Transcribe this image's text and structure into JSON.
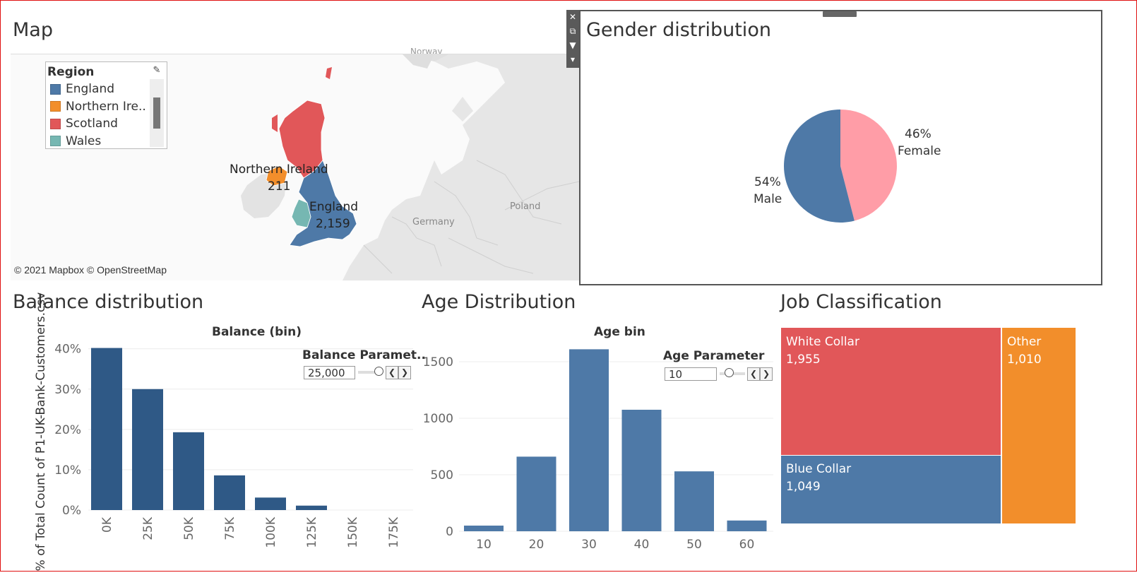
{
  "titles": {
    "map": "Map",
    "gender": "Gender distribution",
    "balance": "Balance distribution",
    "age": "Age Distribution",
    "job": "Job Classification"
  },
  "map": {
    "legend_title": "Region",
    "legend": [
      {
        "label": "England",
        "color": "#4e79a7"
      },
      {
        "label": "Northern Ire..",
        "color": "#f28e2b"
      },
      {
        "label": "Scotland",
        "color": "#e15759"
      },
      {
        "label": "Wales",
        "color": "#76b7b2"
      }
    ],
    "labels": {
      "ni_name": "Northern Ireland",
      "ni_value": "211",
      "eng_name": "England",
      "eng_value": "2,159",
      "germany": "Germany",
      "poland": "Poland",
      "norway": "Norway"
    },
    "attribution": "© 2021 Mapbox © OpenStreetMap"
  },
  "toolbar": {
    "close": "✕",
    "open": "⧉",
    "filter": "▼",
    "more": "▾"
  },
  "chart_data": [
    {
      "type": "pie",
      "title": "Gender distribution",
      "categories": [
        "Male",
        "Female"
      ],
      "values": [
        54,
        46
      ],
      "labels": [
        "54%",
        "46%"
      ],
      "colors": [
        "#4e79a7",
        "#ff9da7"
      ]
    },
    {
      "type": "bar",
      "title": "Balance distribution",
      "xlabel": "Balance (bin)",
      "ylabel": "% of Total Count of P1-UK-Bank-Customers.csv",
      "categories": [
        "0K",
        "25K",
        "50K",
        "75K",
        "100K",
        "125K",
        "150K",
        "175K"
      ],
      "values": [
        40.2,
        30.0,
        19.3,
        8.6,
        3.1,
        1.1,
        0,
        0
      ],
      "yticks": [
        "0%",
        "10%",
        "20%",
        "30%",
        "40%"
      ],
      "ylim": [
        0,
        41
      ],
      "color": "#2f5986",
      "parameter": {
        "title": "Balance Paramet..",
        "value": "25,000"
      }
    },
    {
      "type": "bar",
      "title": "Age Distribution",
      "xlabel": "Age bin",
      "categories": [
        "10",
        "20",
        "30",
        "40",
        "50",
        "60"
      ],
      "values": [
        50,
        660,
        1610,
        1075,
        530,
        95
      ],
      "yticks": [
        "0",
        "500",
        "1000",
        "1500"
      ],
      "ylim": [
        0,
        1650
      ],
      "color": "#4e79a7",
      "parameter": {
        "title": "Age Parameter",
        "value": "10"
      }
    },
    {
      "type": "treemap",
      "title": "Job Classification",
      "categories": [
        "White Collar",
        "Blue Collar",
        "Other"
      ],
      "values": [
        1955,
        1049,
        1010
      ],
      "value_labels": [
        "1,955",
        "1,049",
        "1,010"
      ],
      "colors": [
        "#e15759",
        "#4e79a7",
        "#f28e2b"
      ]
    }
  ]
}
